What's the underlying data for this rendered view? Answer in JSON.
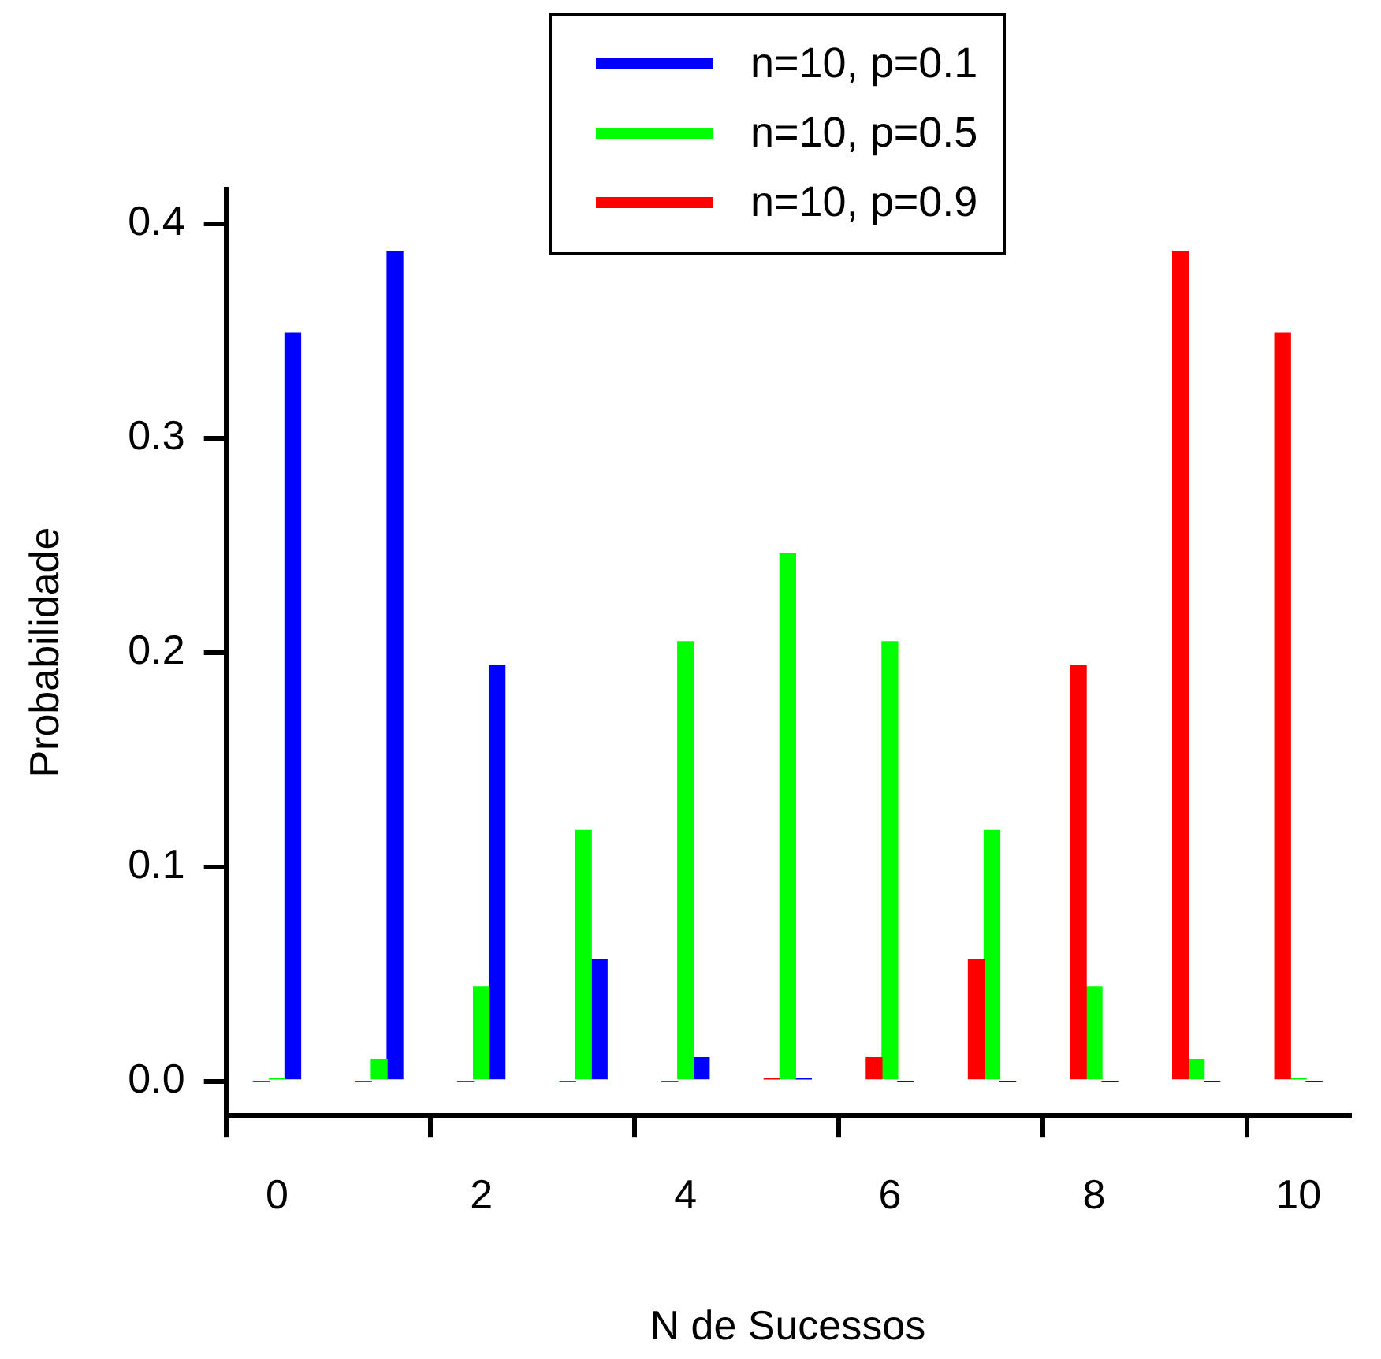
{
  "chart_data": {
    "type": "bar",
    "xlabel": "N de Sucessos",
    "ylabel": "Probabilidade",
    "categories": [
      "0",
      null,
      "2",
      null,
      "4",
      null,
      "6",
      null,
      "8",
      null,
      "10"
    ],
    "series": [
      {
        "name": "n=10, p=0.1",
        "color": "#0000ff",
        "values": [
          0.349,
          0.387,
          0.194,
          0.057,
          0.011,
          0.001,
          0,
          0,
          0,
          0,
          0
        ]
      },
      {
        "name": "n=10, p=0.5",
        "color": "#00ff00",
        "values": [
          0.001,
          0.01,
          0.044,
          0.117,
          0.205,
          0.246,
          0.205,
          0.117,
          0.044,
          0.01,
          0.001
        ]
      },
      {
        "name": "n=10, p=0.9",
        "color": "#ff0000",
        "values": [
          0,
          0,
          0,
          0,
          0,
          0.001,
          0.011,
          0.057,
          0.194,
          0.387,
          0.349
        ]
      }
    ],
    "ylim": [
      -0.016,
      0.416
    ],
    "yticks": [
      {
        "value": 0,
        "label": "0.0"
      },
      0.1,
      0.2,
      0.3,
      0.4
    ],
    "grid": false,
    "legend": "top"
  }
}
